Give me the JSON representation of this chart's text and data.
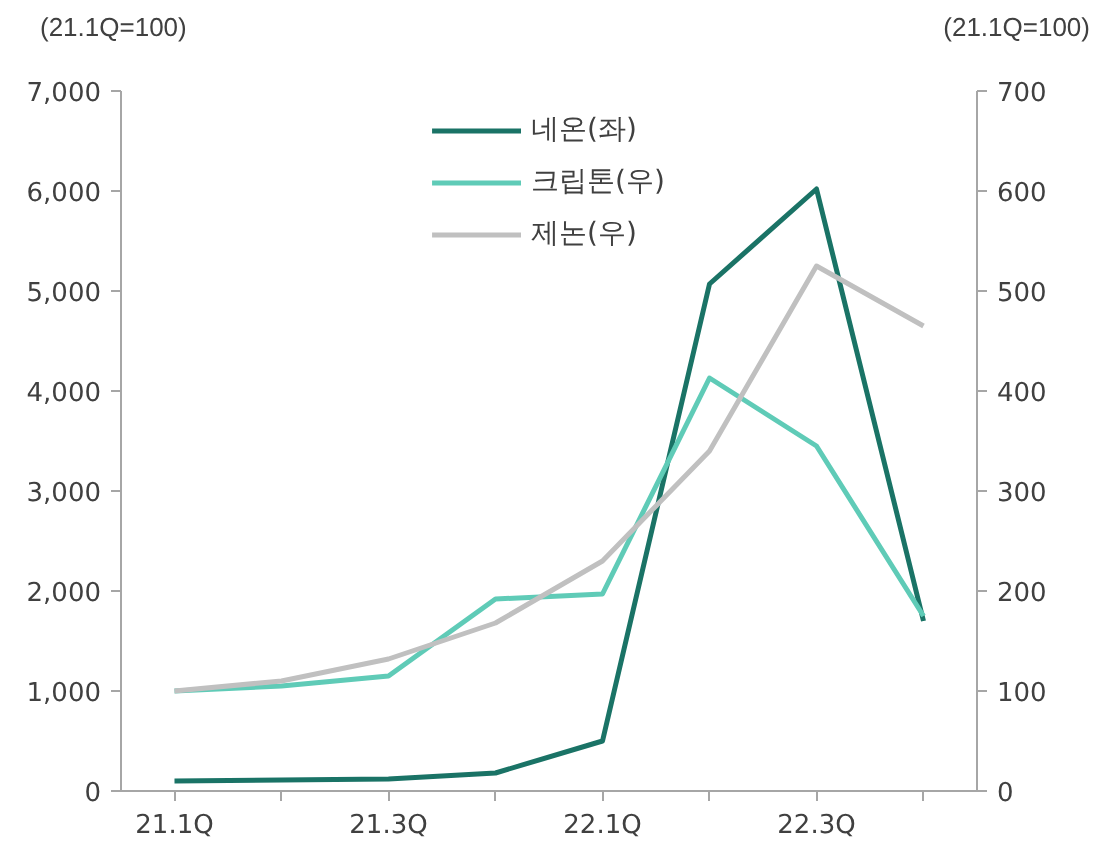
{
  "chart_data": {
    "type": "line",
    "ylabel": "(21.1Q=100)",
    "y2label": "(21.1Q=100)",
    "categories": [
      "21.1Q",
      null,
      "21.3Q",
      null,
      "22.1Q",
      null,
      "22.3Q",
      null
    ],
    "series": [
      {
        "name": "네온(좌)",
        "color": "#1a7366",
        "values": [
          100,
          110,
          120,
          180,
          500,
          5070,
          6020,
          1700
        ]
      },
      {
        "name": "크립톤(우)",
        "color": "#5fcbb7",
        "axis": "y2",
        "values": [
          100,
          105,
          115,
          192,
          197,
          413,
          345,
          175
        ]
      },
      {
        "name": "제논(우)",
        "color": "#c0c0c0",
        "axis": "y2",
        "values": [
          100,
          110,
          132,
          168,
          230,
          340,
          525,
          465
        ]
      }
    ],
    "ylim": [
      0,
      7000
    ],
    "yticks": [
      0,
      {
        "value": 1000,
        "label": "1,000"
      },
      {
        "value": 2000,
        "label": "2,000"
      },
      {
        "value": 3000,
        "label": "3,000"
      },
      {
        "value": 4000,
        "label": "4,000"
      },
      {
        "value": 5000,
        "label": "5,000"
      },
      {
        "value": 6000,
        "label": "6,000"
      },
      {
        "value": 7000,
        "label": "7,000"
      }
    ],
    "y2lim": [
      0,
      700
    ],
    "y2ticks": [
      0,
      100,
      200,
      300,
      400,
      500,
      600,
      700
    ],
    "grid": false,
    "legend": "top",
    "marker": "none",
    "line_style": "solid"
  }
}
